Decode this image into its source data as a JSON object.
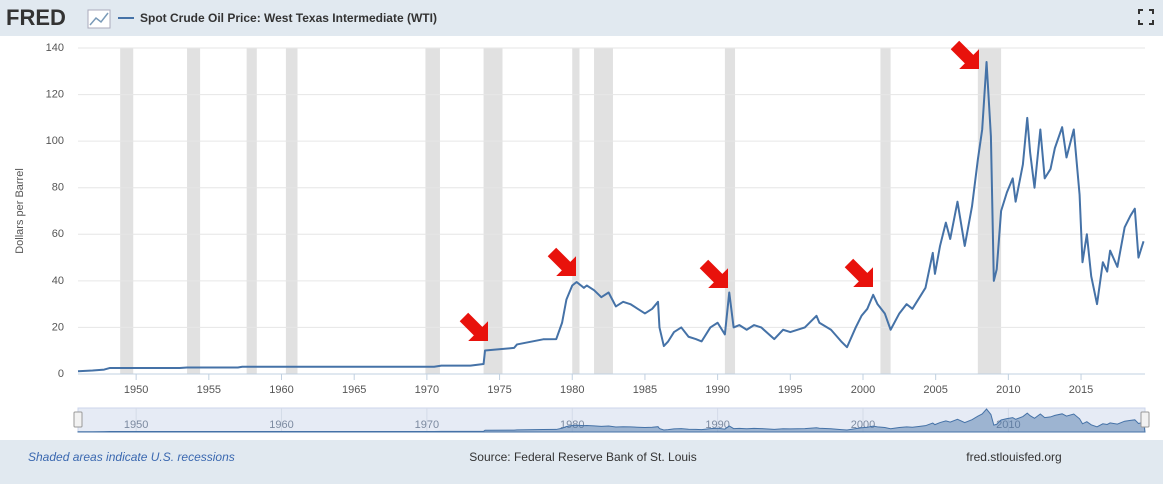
{
  "header": {
    "logo": "FRED"
  },
  "chart_data": {
    "type": "line",
    "series": [
      {
        "name": "Spot Crude Oil Price: West Texas Intermediate (WTI)",
        "color": "#4572a7",
        "x": [
          1946.0,
          1947.0,
          1947.8,
          1948.2,
          1953.0,
          1953.5,
          1957.0,
          1957.3,
          1970.5,
          1971.0,
          1973.0,
          1973.9,
          1974.0,
          1976.0,
          1976.2,
          1978.0,
          1978.9,
          1979.3,
          1979.6,
          1980.0,
          1980.3,
          1980.8,
          1981.0,
          1981.5,
          1982.0,
          1982.5,
          1983.0,
          1983.5,
          1984.0,
          1984.5,
          1985.0,
          1985.5,
          1985.9,
          1986.0,
          1986.3,
          1986.6,
          1987.0,
          1987.5,
          1988.0,
          1988.5,
          1988.9,
          1989.5,
          1990.0,
          1990.5,
          1990.8,
          1991.1,
          1991.5,
          1992.0,
          1992.5,
          1993.0,
          1993.9,
          1994.5,
          1995.0,
          1996.0,
          1996.8,
          1997.0,
          1997.8,
          1998.5,
          1998.9,
          1999.5,
          1999.9,
          2000.3,
          2000.7,
          2001.0,
          2001.5,
          2001.9,
          2002.5,
          2003.0,
          2003.4,
          2003.9,
          2004.3,
          2004.8,
          2004.95,
          2005.3,
          2005.7,
          2006.0,
          2006.5,
          2007.0,
          2007.5,
          2007.9,
          2008.2,
          2008.5,
          2008.8,
          2009.0,
          2009.2,
          2009.5,
          2009.9,
          2010.3,
          2010.5,
          2011.0,
          2011.3,
          2011.5,
          2011.8,
          2012.2,
          2012.5,
          2012.9,
          2013.2,
          2013.7,
          2014.0,
          2014.5,
          2014.9,
          2015.1,
          2015.4,
          2015.7,
          2016.1,
          2016.5,
          2016.8,
          2017.0,
          2017.5,
          2018.0,
          2018.4,
          2018.7,
          2018.95,
          2019.3
        ],
        "values": [
          1.2,
          1.5,
          1.9,
          2.6,
          2.6,
          2.8,
          2.8,
          3.1,
          3.1,
          3.6,
          3.6,
          4.3,
          10.1,
          11.2,
          12.7,
          14.9,
          15.0,
          22.0,
          32.0,
          38.0,
          39.5,
          37.0,
          38.0,
          36.0,
          33.0,
          35.0,
          29.0,
          31.0,
          30.0,
          28.0,
          26.0,
          28.0,
          31.0,
          20.0,
          12.0,
          14.0,
          18.0,
          20.0,
          16.0,
          15.0,
          14.0,
          20.0,
          22.0,
          17.0,
          35.0,
          20.0,
          21.0,
          19.0,
          21.0,
          20.0,
          15.0,
          19.0,
          18.0,
          20.0,
          25.0,
          22.0,
          19.0,
          14.0,
          11.5,
          20.0,
          25.0,
          28.0,
          34.0,
          30.0,
          26.0,
          19.0,
          26.0,
          30.0,
          28.0,
          33.0,
          37.0,
          52.0,
          43.0,
          55.0,
          65.0,
          58.0,
          74.0,
          55.0,
          72.0,
          92.0,
          105.0,
          134.0,
          102.0,
          40.0,
          45.0,
          70.0,
          78.0,
          84.0,
          74.0,
          90.0,
          110.0,
          95.0,
          80.0,
          105.0,
          84.0,
          88.0,
          97.0,
          106.0,
          93.0,
          105.0,
          77.0,
          48.0,
          60.0,
          42.0,
          30.0,
          48.0,
          44.0,
          53.0,
          46.0,
          63.0,
          68.0,
          71.0,
          50.0,
          57.0
        ]
      }
    ],
    "recessions": [
      [
        1948.9,
        1949.8
      ],
      [
        1953.5,
        1954.4
      ],
      [
        1957.6,
        1958.3
      ],
      [
        1960.3,
        1961.1
      ],
      [
        1969.9,
        1970.9
      ],
      [
        1973.9,
        1975.2
      ],
      [
        1980.0,
        1980.5
      ],
      [
        1981.5,
        1982.8
      ],
      [
        1990.5,
        1991.2
      ],
      [
        2001.2,
        2001.9
      ],
      [
        2007.9,
        2009.5
      ]
    ],
    "y_label": "Dollars per Barrel",
    "xlim": [
      1946.0,
      2019.4
    ],
    "ylim": [
      0,
      140
    ],
    "xticks": [
      1950,
      1955,
      1960,
      1965,
      1970,
      1975,
      1980,
      1985,
      1990,
      1995,
      2000,
      2005,
      2010,
      2015
    ],
    "navigator_ticks": [
      1950,
      1960,
      1970,
      1980,
      1990,
      2000,
      2010
    ],
    "yticks": [
      0,
      20,
      40,
      60,
      80,
      100,
      120,
      140
    ],
    "grid": true
  },
  "footer": {
    "note": "Shaded areas indicate U.S. recessions",
    "source": "Source: Federal Reserve Bank of St. Louis",
    "site": "fred.stlouisfed.org"
  }
}
